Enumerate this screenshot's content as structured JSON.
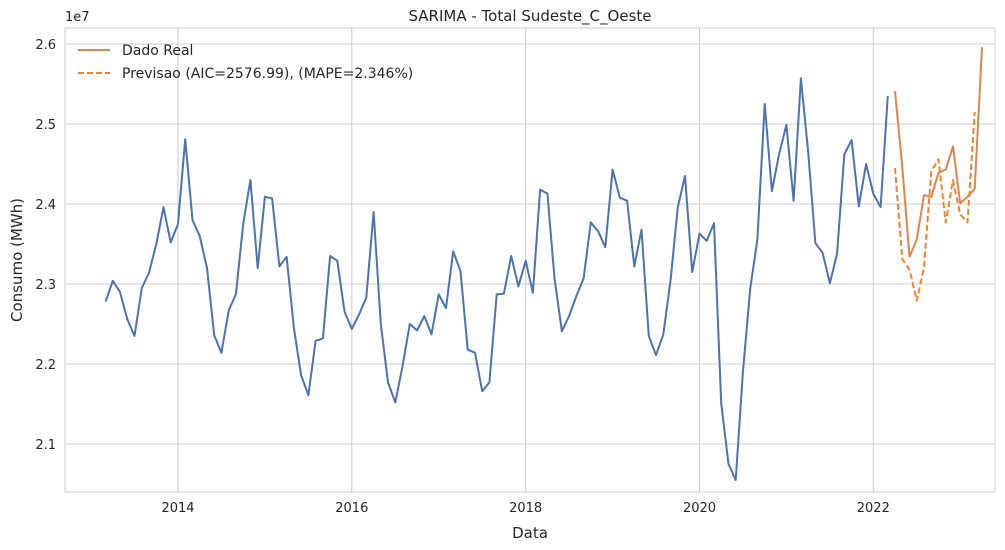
{
  "chart_data": {
    "type": "line",
    "title": "SARIMA - Total Sudeste_C_Oeste",
    "xlabel": "Data",
    "ylabel": "Consumo (MWh)",
    "y_offset_label": "1e7",
    "xlim": [
      2012.7,
      2023.4
    ],
    "ylim": [
      20.4,
      26.2
    ],
    "x_ticks": [
      2014,
      2016,
      2018,
      2020,
      2022
    ],
    "x_tick_labels": [
      "2014",
      "2016",
      "2018",
      "2020",
      "2022"
    ],
    "y_ticks": [
      21,
      22,
      23,
      24,
      25,
      26
    ],
    "y_tick_labels": [
      "2.1",
      "2.2",
      "2.3",
      "2.4",
      "2.5",
      "2.6"
    ],
    "grid": true,
    "legend_position": "top-left",
    "legend": [
      {
        "label": "Dado Real",
        "color": "#dd8452",
        "dash": "solid"
      },
      {
        "label": "Previsao (AIC=2576.99), (MAPE=2.346%)",
        "color": "#f0822a",
        "dash": "dashed"
      }
    ],
    "series": [
      {
        "name": "",
        "color": "#4c72b0",
        "dash": "solid",
        "start": "2013-03",
        "values": [
          22.78,
          23.04,
          22.9,
          22.56,
          22.35,
          22.95,
          23.14,
          23.5,
          23.96,
          23.52,
          23.75,
          24.81,
          23.8,
          23.6,
          23.2,
          22.36,
          22.14,
          22.67,
          22.87,
          23.75,
          24.3,
          23.2,
          24.09,
          24.07,
          23.22,
          23.34,
          22.45,
          21.86,
          21.61,
          22.29,
          22.32,
          23.35,
          23.29,
          22.65,
          22.44,
          22.62,
          22.83,
          23.9,
          22.5,
          21.77,
          21.52,
          21.97,
          22.5,
          22.42,
          22.6,
          22.37,
          22.87,
          22.7,
          23.41,
          23.16,
          22.18,
          22.14,
          21.66,
          21.77,
          22.87,
          22.88,
          23.35,
          22.97,
          23.29,
          22.89,
          24.18,
          24.13,
          23.06,
          22.41,
          22.6,
          22.85,
          23.07,
          23.77,
          23.66,
          23.46,
          24.43,
          24.08,
          24.04,
          23.22,
          23.68,
          22.35,
          22.11,
          22.37,
          23.04,
          23.96,
          24.35,
          23.15,
          23.63,
          23.54,
          23.76,
          21.51,
          20.75,
          20.55,
          21.9,
          22.94,
          23.56,
          25.25,
          24.16,
          24.63,
          24.99,
          24.04,
          25.57,
          24.66,
          23.51,
          23.39,
          23.01,
          23.38,
          24.62,
          24.8,
          23.97,
          24.5,
          24.13,
          23.96,
          25.35
        ]
      },
      {
        "name": "Dado Real",
        "color": "#dd8452",
        "dash": "solid",
        "start": "2022-04",
        "values": [
          25.41,
          24.46,
          23.34,
          23.56,
          24.11,
          24.09,
          24.39,
          24.43,
          24.72,
          24.01,
          24.09,
          24.19,
          25.96
        ]
      },
      {
        "name": "Previsao (AIC=2576.99), (MAPE=2.346%)",
        "color": "#f0822a",
        "dash": "dashed",
        "start": "2022-04",
        "values": [
          24.45,
          23.31,
          23.18,
          22.79,
          23.21,
          24.41,
          24.56,
          23.77,
          24.3,
          23.87,
          23.77,
          25.15
        ]
      }
    ]
  }
}
